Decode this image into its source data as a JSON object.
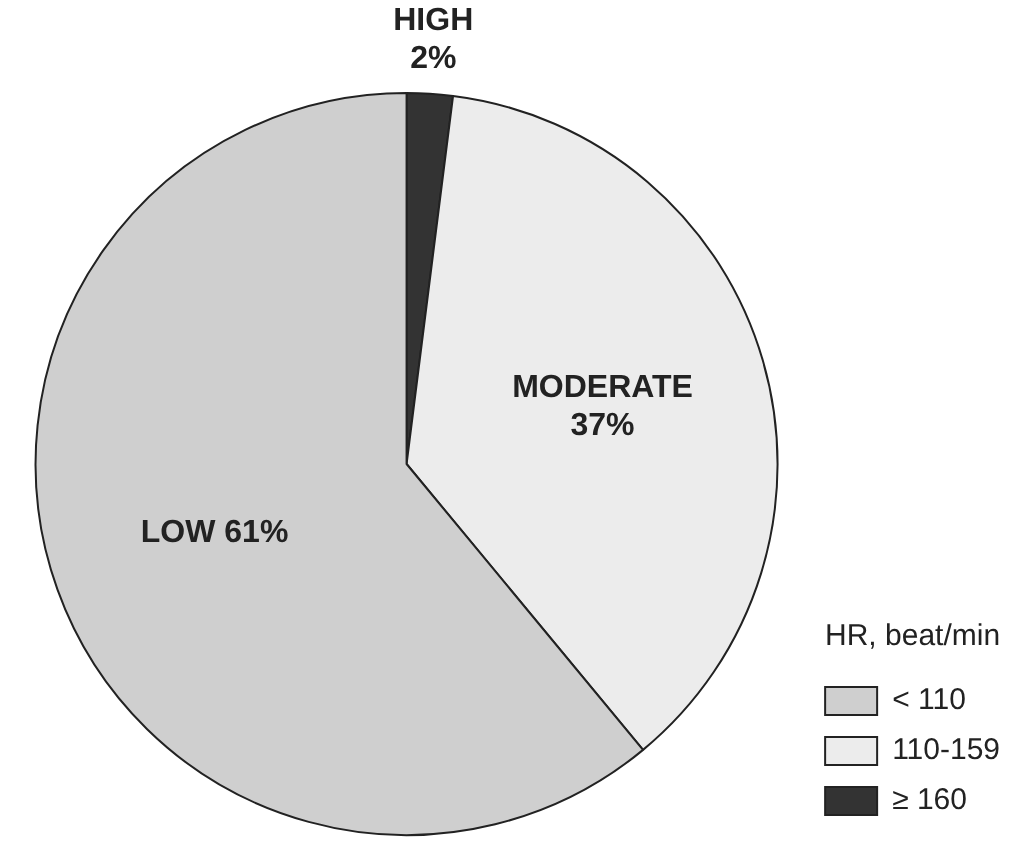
{
  "chart_data": {
    "type": "pie",
    "categories": [
      "≥ 160",
      "110-159",
      "< 110"
    ],
    "values": [
      2,
      37,
      61
    ],
    "colors": [
      "#333333",
      "#ececec",
      "#cfcfcf"
    ],
    "value_labels": [
      "HIGH\n2%",
      "MODERATE\n37%",
      "LOW 61%"
    ],
    "legend_title": "HR, beat/min",
    "legend": "bottom right"
  }
}
